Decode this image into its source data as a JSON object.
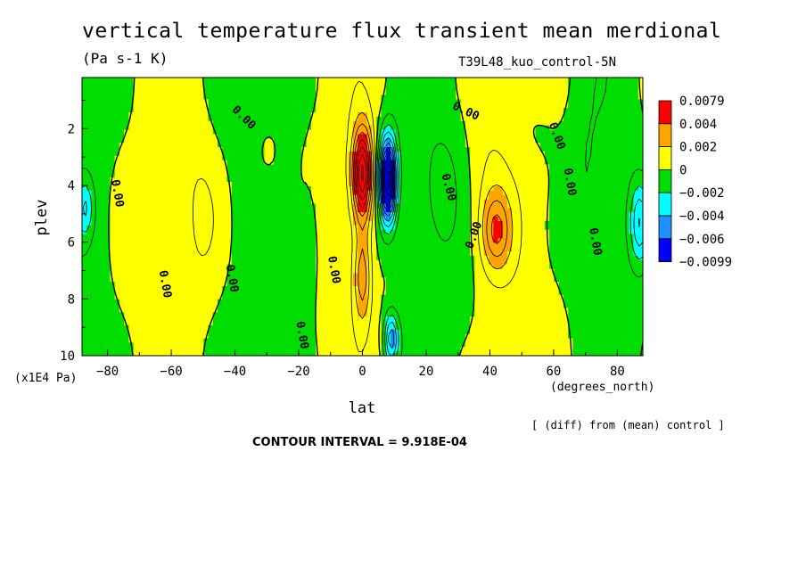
{
  "header": {
    "title": "vertical temperature flux transient mean merdional",
    "units": "(Pa s-1 K)",
    "run_name": "T39L48_kuo_control-5N"
  },
  "footer": {
    "contour_interval": "CONTOUR INTERVAL = 9.918E-04",
    "diff_note": "[ (diff) from (mean) control ]"
  },
  "chart_data": {
    "type": "heatmap",
    "title": "vertical temperature flux transient mean merdional",
    "subtitle": "(Pa s-1 K)",
    "xlabel": "lat",
    "ylabel": "plev",
    "x_unit": "(degrees_north)",
    "y_unit": "(x1E4 Pa)",
    "xlim": [
      -88,
      88
    ],
    "ylim": [
      10,
      0.2
    ],
    "x_ticks": [
      -80,
      -60,
      -40,
      -20,
      0,
      20,
      40,
      60,
      80
    ],
    "x_tick_labels": [
      "−80",
      "−60",
      "−40",
      "−20",
      "0",
      "20",
      "40",
      "60",
      "80"
    ],
    "y_ticks": [
      2,
      4,
      6,
      8,
      10
    ],
    "y_tick_labels": [
      "2",
      "4",
      "6",
      "8",
      "10"
    ],
    "contour_label": "0.00",
    "legend": {
      "position": "right",
      "labels": [
        "0.0079",
        "0.004",
        "0.002",
        "0",
        "−0.002",
        "−0.004",
        "−0.006",
        "−0.0099"
      ],
      "colors": [
        "#ff0000",
        "#ffa500",
        "#ffff00",
        "#00dd00",
        "#00ffff",
        "#1e90ff",
        "#0000ff"
      ]
    },
    "bands": [
      {
        "range": [
          0.004,
          0.0079
        ],
        "color": "#ff0000"
      },
      {
        "range": [
          0.002,
          0.004
        ],
        "color": "#ffa500"
      },
      {
        "range": [
          0,
          0.002
        ],
        "color": "#ffff00"
      },
      {
        "range": [
          -0.002,
          0
        ],
        "color": "#00dd00"
      },
      {
        "range": [
          -0.004,
          -0.002
        ],
        "color": "#00ffff"
      },
      {
        "range": [
          -0.006,
          -0.004
        ],
        "color": "#1e90ff"
      },
      {
        "range": [
          -0.0099,
          -0.006
        ],
        "color": "#0000ff"
      }
    ],
    "features": [
      {
        "kind": "max",
        "lat": 0,
        "plev_range": [
          2,
          6
        ],
        "value": 0.0079
      },
      {
        "kind": "positive",
        "lat": 0,
        "plev_range": [
          6,
          9
        ],
        "value": 0.003
      },
      {
        "kind": "min",
        "lat": 8,
        "plev_range": [
          2,
          5
        ],
        "value": -0.0099
      },
      {
        "kind": "negative",
        "lat": 8,
        "plev_range": [
          8,
          10
        ],
        "value": -0.004
      },
      {
        "kind": "positive",
        "lat": 42,
        "plev_range": [
          4.5,
          7
        ],
        "value": 0.003
      },
      {
        "kind": "negative",
        "lat": 86,
        "plev_range": [
          4,
          7
        ],
        "value": -0.003
      },
      {
        "kind": "negative",
        "lat": -86,
        "plev_range": [
          4,
          6
        ],
        "value": -0.002
      },
      {
        "kind": "negative",
        "lat": 25,
        "plev_range": [
          3,
          5
        ],
        "value": -0.002
      }
    ],
    "grid": false
  }
}
